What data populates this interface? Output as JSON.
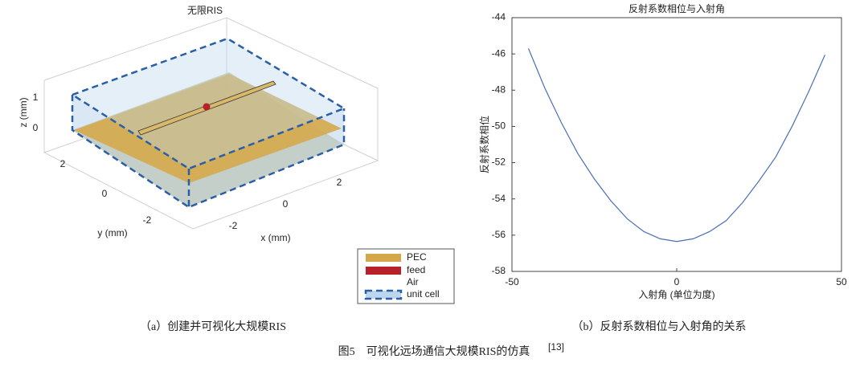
{
  "panel_a": {
    "title": "无限RIS",
    "z_label": "z (mm)",
    "z_ticks": [
      1,
      0
    ],
    "y_label": "y (mm)",
    "y_ticks": [
      2,
      0,
      -2
    ],
    "x_label": "x (mm)",
    "x_ticks": [
      -2,
      0,
      2
    ],
    "legend": [
      "PEC",
      "feed",
      "Air",
      "unit cell"
    ]
  },
  "chart_data": {
    "type": "line",
    "title": "反射系数相位与入射角",
    "x_label": "入射角 (单位为度)",
    "y_label": "反射系数相位",
    "x": [
      -45,
      -40,
      -35,
      -30,
      -25,
      -20,
      -15,
      -10,
      -5,
      0,
      5,
      10,
      15,
      20,
      25,
      30,
      35,
      40,
      45
    ],
    "series": [
      {
        "color": "#4a6fb5",
        "values": [
          -45.7,
          -47.9,
          -49.8,
          -51.5,
          -52.9,
          -54.1,
          -55.1,
          -55.8,
          -56.2,
          -56.35,
          -56.2,
          -55.8,
          -55.2,
          -54.2,
          -53.0,
          -51.7,
          -50.0,
          -48.1,
          -46.05
        ]
      }
    ],
    "xlim": [
      -50,
      50
    ],
    "xticks": [
      -50,
      0,
      50
    ],
    "ylim": [
      -58,
      -44
    ],
    "yticks": [
      -58,
      -56,
      -54,
      -52,
      -50,
      -48,
      -46,
      -44
    ]
  },
  "captions": {
    "a": "（a）创建并可视化大规模RIS",
    "b": "（b）反射系数相位与入射角的关系",
    "figure": "图5　可视化远场通信大规模RIS的仿真",
    "ref": "[13]"
  }
}
